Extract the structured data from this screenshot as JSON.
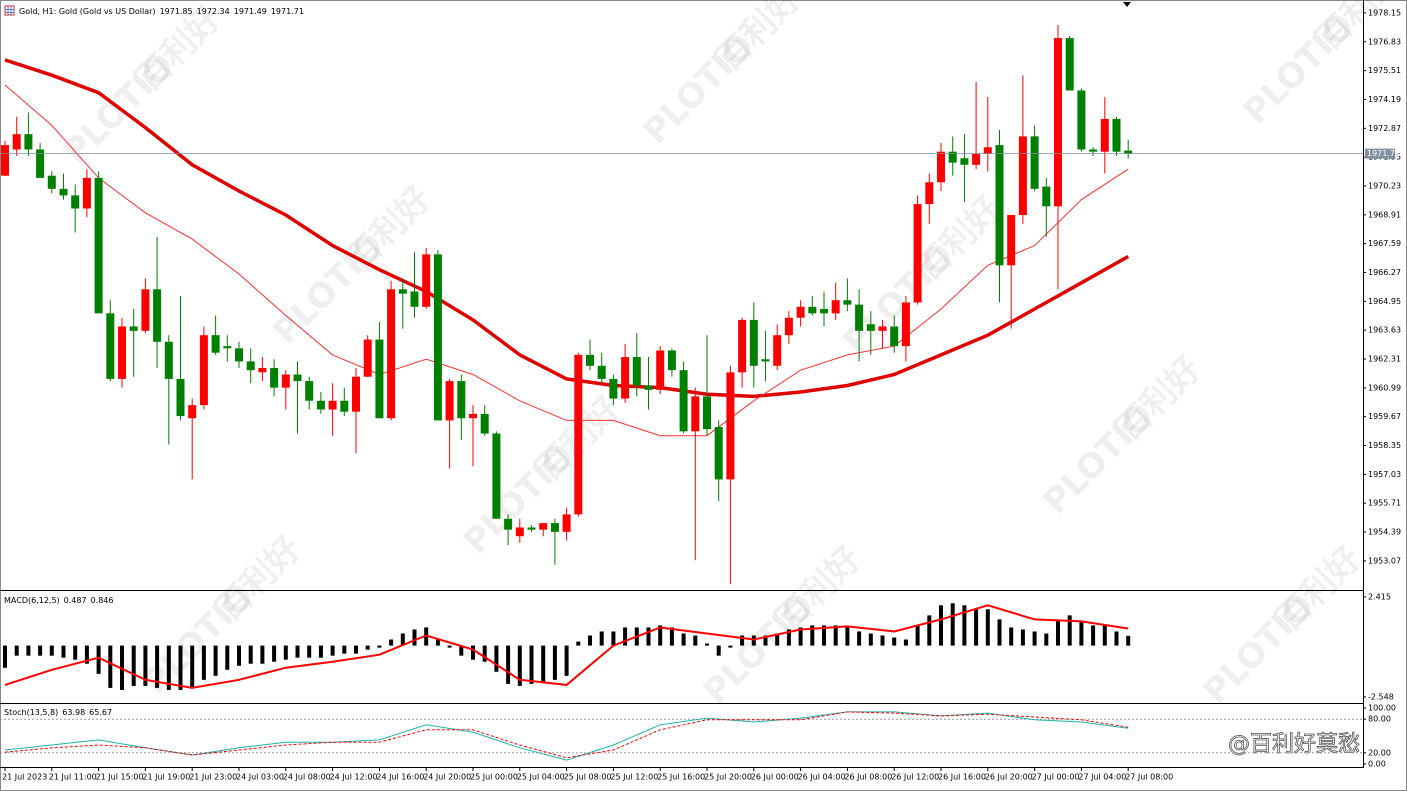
{
  "chart_data": [
    {
      "type": "candlestick",
      "title": "Gold, H1: Gold (Gold vs US Dollar)",
      "categories": [
        "21 Jul 2023",
        null,
        null,
        null,
        "21 Jul 11:00",
        null,
        null,
        null,
        "21 Jul 15:00",
        null,
        null,
        null,
        "21 Jul 19:00",
        null,
        null,
        null,
        "21 Jul 23:00",
        null,
        null,
        null,
        "24 Jul 03:00",
        null,
        null,
        null,
        "24 Jul 08:00",
        null,
        null,
        null,
        "24 Jul 12:00",
        null,
        null,
        null,
        "24 Jul 16:00",
        null,
        null,
        null,
        "24 Jul 20:00",
        null,
        null,
        null,
        "25 Jul 00:00",
        null,
        null,
        null,
        "25 Jul 04:00",
        null,
        null,
        null,
        "25 Jul 08:00",
        null,
        null,
        null,
        "25 Jul 12:00",
        null,
        null,
        null,
        "25 Jul 16:00",
        null,
        null,
        null,
        "25 Jul 20:00",
        null,
        null,
        null,
        "26 Jul 00:00",
        null,
        null,
        null,
        "26 Jul 04:00",
        null,
        null,
        null,
        "26 Jul 08:00",
        null,
        null,
        null,
        "26 Jul 12:00",
        null,
        null,
        null,
        "26 Jul 16:00",
        null,
        null,
        null,
        "26 Jul 20:00",
        null,
        null,
        null,
        "27 Jul 00:00",
        null,
        null,
        null,
        "27 Jul 04:00",
        null,
        null,
        null,
        "27 Jul 08:00"
      ],
      "open": [
        1970.7,
        1971.9,
        1972.6,
        1971.9,
        1970.7,
        1970.1,
        1969.8,
        1969.2,
        1970.6,
        1964.4,
        1961.4,
        1963.8,
        1963.6,
        1965.5,
        1963.1,
        1961.4,
        1959.6,
        1960.2,
        1963.4,
        1962.9,
        1962.8,
        1962.2,
        1961.7,
        1961.9,
        1961.0,
        1961.6,
        1961.3,
        1960.4,
        1960.0,
        1960.4,
        1959.9,
        1961.5,
        1963.2,
        1959.6,
        1965.5,
        1965.4,
        1964.7,
        1967.1,
        1959.5,
        1961.3,
        1959.6,
        1959.8,
        1958.9,
        1955.0,
        1954.2,
        1954.6,
        1954.5,
        1954.8,
        1954.4,
        1955.2,
        1962.5,
        1962.0,
        1961.4,
        1960.5,
        1962.4,
        1961.1,
        1960.9,
        1962.7,
        1961.8,
        1959.0,
        1960.6,
        1959.2,
        1956.8,
        1961.7,
        1964.1,
        1962.3,
        1962.0,
        1963.4,
        1964.2,
        1964.7,
        1964.6,
        1964.4,
        1965.0,
        1964.8,
        1963.9,
        1963.6,
        1963.8,
        1962.9,
        1964.9,
        1969.4,
        1970.4,
        1971.8,
        1971.5,
        1971.2,
        1971.7,
        1972.1,
        1966.6,
        1968.9,
        1972.5,
        1970.2,
        1969.3,
        1977.0,
        1974.6,
        1971.9,
        1971.8,
        1973.3,
        1971.85
      ],
      "high": [
        1972.3,
        1973.4,
        1973.6,
        1972.2,
        1970.9,
        1970.8,
        1970.3,
        1971.0,
        1970.9,
        1965.0,
        1964.2,
        1964.6,
        1966.0,
        1967.9,
        1963.4,
        1965.2,
        1960.5,
        1963.8,
        1964.3,
        1963.4,
        1963.1,
        1962.8,
        1962.4,
        1962.3,
        1961.8,
        1962.2,
        1961.5,
        1960.8,
        1961.2,
        1961.0,
        1961.9,
        1963.4,
        1964.0,
        1965.9,
        1966.0,
        1967.2,
        1967.4,
        1967.3,
        1961.4,
        1961.6,
        1960.2,
        1960.2,
        1959.0,
        1955.2,
        1955.0,
        1954.7,
        1954.8,
        1955.0,
        1955.5,
        1962.6,
        1963.2,
        1962.6,
        1961.6,
        1963.0,
        1963.5,
        1962.4,
        1962.9,
        1962.8,
        1962.2,
        1961.0,
        1963.4,
        1959.5,
        1962.0,
        1964.2,
        1964.9,
        1963.6,
        1963.9,
        1964.5,
        1965.0,
        1965.2,
        1965.4,
        1965.8,
        1966.0,
        1965.5,
        1964.5,
        1964.1,
        1964.3,
        1965.2,
        1969.8,
        1970.8,
        1972.2,
        1972.5,
        1972.6,
        1975.0,
        1974.3,
        1972.8,
        1968.9,
        1975.3,
        1973.0,
        1970.6,
        1977.6,
        1977.1,
        1974.7,
        1972.0,
        1974.3,
        1973.4,
        1972.34
      ],
      "low": [
        1970.7,
        1971.6,
        1971.6,
        1970.6,
        1969.9,
        1969.6,
        1968.1,
        1968.8,
        1964.4,
        1961.3,
        1961.0,
        1961.5,
        1963.5,
        1961.9,
        1958.4,
        1959.5,
        1956.8,
        1960.0,
        1962.5,
        1962.2,
        1961.9,
        1961.2,
        1961.3,
        1960.6,
        1960.0,
        1958.9,
        1960.0,
        1959.8,
        1958.8,
        1959.7,
        1958.0,
        1961.5,
        1959.6,
        1959.5,
        1963.7,
        1964.2,
        1964.6,
        1959.5,
        1957.3,
        1958.6,
        1957.4,
        1958.8,
        1955.0,
        1953.8,
        1953.9,
        1954.4,
        1954.2,
        1952.9,
        1954.0,
        1955.1,
        1961.8,
        1961.2,
        1960.2,
        1960.3,
        1960.6,
        1960.0,
        1960.7,
        1961.5,
        1958.9,
        1953.1,
        1958.8,
        1955.8,
        1952.0,
        1961.0,
        1961.0,
        1961.3,
        1961.8,
        1963.0,
        1963.8,
        1964.3,
        1963.8,
        1964.1,
        1964.5,
        1962.2,
        1962.5,
        1962.8,
        1962.6,
        1962.2,
        1964.8,
        1968.5,
        1970.0,
        1970.7,
        1969.5,
        1971.0,
        1970.9,
        1964.9,
        1963.7,
        1968.5,
        1970.0,
        1967.9,
        1965.5,
        1974.6,
        1971.8,
        1971.6,
        1970.8,
        1971.6,
        1971.49
      ],
      "close": [
        1972.1,
        1972.6,
        1971.9,
        1970.6,
        1970.1,
        1969.8,
        1969.2,
        1970.6,
        1964.4,
        1961.4,
        1963.8,
        1963.6,
        1965.5,
        1963.1,
        1961.4,
        1959.7,
        1960.2,
        1963.4,
        1962.6,
        1962.8,
        1962.2,
        1961.8,
        1961.9,
        1961.0,
        1961.6,
        1961.3,
        1960.4,
        1960.0,
        1960.4,
        1959.9,
        1961.5,
        1963.2,
        1959.6,
        1965.5,
        1965.3,
        1964.7,
        1967.1,
        1959.5,
        1961.3,
        1959.6,
        1959.8,
        1958.9,
        1955.0,
        1954.5,
        1954.6,
        1954.5,
        1954.8,
        1954.4,
        1955.2,
        1962.5,
        1962.0,
        1961.4,
        1960.5,
        1962.4,
        1961.1,
        1960.9,
        1962.7,
        1961.8,
        1959.0,
        1960.6,
        1959.1,
        1956.8,
        1961.7,
        1964.1,
        1962.0,
        1962.2,
        1963.4,
        1964.2,
        1964.7,
        1964.4,
        1964.4,
        1965.0,
        1964.8,
        1963.6,
        1963.6,
        1963.8,
        1962.9,
        1964.9,
        1969.4,
        1970.4,
        1971.8,
        1971.3,
        1971.2,
        1971.7,
        1972.0,
        1966.6,
        1968.9,
        1972.5,
        1970.1,
        1969.3,
        1977.0,
        1974.6,
        1971.9,
        1971.8,
        1973.3,
        1971.8,
        1971.71
      ],
      "up_color": "#ff0000",
      "down_color": "#008000",
      "overlays": [
        {
          "x": [
            0,
            4,
            8,
            12,
            16,
            20,
            24,
            28,
            32,
            36,
            40,
            44,
            48,
            52,
            56,
            60,
            64,
            68,
            72,
            76,
            80,
            84,
            88,
            92,
            96
          ],
          "values": [
            1976.0,
            1975.3,
            1974.5,
            1972.9,
            1971.2,
            1970.0,
            1968.9,
            1967.5,
            1966.4,
            1965.4,
            1964.1,
            1962.5,
            1961.4,
            1961.1,
            1961.0,
            1960.7,
            1960.6,
            1960.8,
            1961.1,
            1961.6,
            1962.5,
            1963.4,
            1964.6,
            1965.8,
            1967.0
          ],
          "color": "#e00000",
          "width": 3.5
        },
        {
          "x": [
            0,
            4,
            8,
            12,
            16,
            20,
            24,
            28,
            32,
            36,
            40,
            44,
            48,
            52,
            56,
            60,
            64,
            68,
            72,
            76,
            80,
            84,
            88,
            92,
            96
          ],
          "values": [
            1974.85,
            1973.0,
            1970.6,
            1969.0,
            1967.8,
            1966.2,
            1964.3,
            1962.5,
            1961.6,
            1962.3,
            1961.6,
            1960.4,
            1959.5,
            1959.5,
            1958.8,
            1958.8,
            1960.4,
            1961.8,
            1962.5,
            1962.9,
            1964.6,
            1966.6,
            1967.5,
            1969.6,
            1971.0
          ],
          "color": "#ff3030",
          "width": 1
        }
      ],
      "ylim": [
        1951.83,
        1978.65
      ],
      "yticks": [
        1978.15,
        1976.83,
        1975.51,
        1974.19,
        1972.87,
        1971.55,
        1970.23,
        1968.91,
        1967.59,
        1966.27,
        1964.95,
        1963.63,
        1962.31,
        1960.99,
        1959.67,
        1958.35,
        1957.03,
        1955.71,
        1954.39,
        1953.07
      ],
      "grid": false,
      "watermarks": {
        "logo": "PLOTIO",
        "brand": "百利好",
        "credit": "@百利好莫愁"
      }
    },
    {
      "type": "bar",
      "title": "MACD(6,12,5)",
      "values": [
        -1.1,
        -0.5,
        -0.5,
        -0.5,
        -0.5,
        -0.6,
        -0.7,
        -0.9,
        -1.4,
        -2.1,
        -2.2,
        -2.0,
        -2.0,
        -2.1,
        -2.2,
        -2.2,
        -2.1,
        -1.7,
        -1.5,
        -1.2,
        -1.0,
        -0.9,
        -0.9,
        -0.8,
        -0.7,
        -0.6,
        -0.6,
        -0.6,
        -0.5,
        -0.4,
        -0.4,
        -0.2,
        -0.1,
        0.3,
        0.6,
        0.8,
        0.9,
        0.3,
        -0.1,
        -0.5,
        -0.7,
        -0.8,
        -1.3,
        -1.9,
        -2.0,
        -1.9,
        -1.8,
        -1.7,
        -1.5,
        0.2,
        0.5,
        0.7,
        0.7,
        0.9,
        0.9,
        0.9,
        1.0,
        0.9,
        0.6,
        0.5,
        0.1,
        -0.5,
        -0.1,
        0.5,
        0.5,
        0.5,
        0.6,
        0.8,
        0.9,
        1.0,
        1.0,
        1.0,
        0.9,
        0.7,
        0.6,
        0.5,
        0.4,
        0.3,
        1.0,
        1.5,
        2.0,
        2.1,
        2.0,
        1.8,
        1.8,
        1.3,
        0.9,
        0.8,
        0.7,
        0.6,
        1.3,
        1.5,
        1.2,
        1.0,
        1.0,
        0.7,
        0.487
      ],
      "color": "#000000",
      "signal": {
        "x": [
          0,
          4,
          8,
          12,
          16,
          20,
          24,
          28,
          32,
          36,
          40,
          44,
          48,
          52,
          56,
          60,
          64,
          68,
          72,
          76,
          80,
          84,
          88,
          92,
          96
        ],
        "values": [
          -1.95,
          -1.2,
          -0.6,
          -1.7,
          -2.1,
          -1.7,
          -1.1,
          -0.8,
          -0.45,
          0.5,
          -0.2,
          -1.7,
          -1.95,
          0.0,
          0.9,
          0.6,
          0.3,
          0.8,
          0.95,
          0.7,
          1.3,
          2.0,
          1.3,
          1.2,
          0.846
        ],
        "color": "#ff0000"
      },
      "ylim": [
        -2.8,
        2.61
      ],
      "yticks": [
        2.415,
        -2.548
      ]
    },
    {
      "type": "line",
      "title": "Stoch(13,5,8)",
      "lines": [
        {
          "x": [
            0,
            4,
            8,
            12,
            16,
            20,
            24,
            28,
            32,
            36,
            40,
            44,
            48,
            52,
            56,
            60,
            64,
            68,
            72,
            76,
            80,
            84,
            88,
            92,
            96
          ],
          "values": [
            25,
            34,
            43,
            29,
            16,
            29,
            39,
            39,
            43,
            70,
            57,
            29,
            7,
            34,
            70,
            82,
            75,
            82,
            93,
            93,
            86,
            91,
            79,
            75,
            63.98
          ],
          "color": "#20b2aa",
          "dash": false
        },
        {
          "x": [
            0,
            4,
            8,
            12,
            16,
            20,
            24,
            28,
            32,
            36,
            40,
            44,
            48,
            52,
            56,
            60,
            64,
            68,
            72,
            76,
            80,
            84,
            88,
            92,
            96
          ],
          "values": [
            21,
            29,
            34,
            29,
            16,
            25,
            34,
            39,
            39,
            61,
            61,
            34,
            11,
            25,
            61,
            79,
            79,
            79,
            93,
            91,
            86,
            89,
            84,
            79,
            65.67
          ],
          "color": "#ff0000",
          "dash": true
        }
      ],
      "levels": [
        80,
        20
      ],
      "ylim": [
        -5.4,
        105.4
      ],
      "yticks": [
        {
          "value": 100,
          "label": "100.00"
        },
        {
          "value": 80,
          "label": "80.00"
        },
        {
          "value": 20,
          "label": "20.00"
        },
        {
          "value": 0,
          "label": "0.00"
        }
      ]
    }
  ]
}
